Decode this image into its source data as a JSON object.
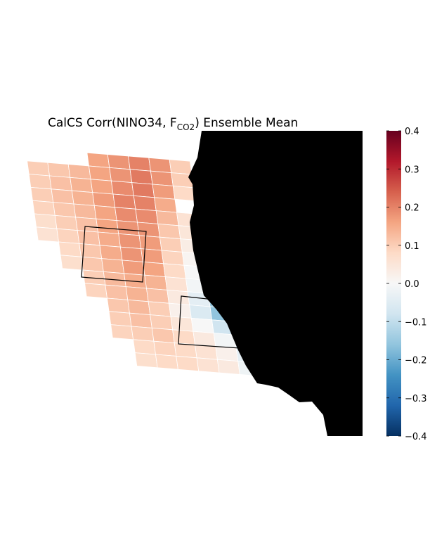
{
  "figure": {
    "title_prefix": "CalCS Corr(NINO34, F",
    "title_subscript": "CO2",
    "title_suffix": ") Ensemble Mean"
  },
  "colorbar": {
    "colormap": "RdBu_r",
    "range": [
      -0.4,
      0.4
    ],
    "ticks": [
      "0.4",
      "0.3",
      "0.2",
      "0.1",
      "0.0",
      "−0.1",
      "−0.2",
      "−0.3",
      "−0.4"
    ],
    "colors_high_to_low": [
      "#67001f",
      "#b2182b",
      "#d6604d",
      "#f4a582",
      "#fddbc7",
      "#f7f7f7",
      "#d1e5f0",
      "#92c5de",
      "#4393c3",
      "#2166ac",
      "#053061"
    ]
  },
  "chart_data": {
    "type": "heatmap",
    "title": "CalCS Corr(NINO34, F_CO2) Ensemble Mean",
    "value_range": [
      -0.4,
      0.4
    ],
    "land_color": "#000000",
    "boxed_regions": 2,
    "correlation_rows": [
      [
        null,
        null,
        null,
        0.16,
        0.18,
        0.2,
        0.18,
        0.1,
        null,
        null,
        null
      ],
      [
        0.1,
        0.11,
        0.13,
        0.16,
        0.18,
        0.21,
        0.18,
        0.1,
        null,
        null,
        null
      ],
      [
        0.1,
        0.12,
        0.14,
        0.16,
        0.19,
        0.21,
        0.17,
        0.08,
        null,
        null,
        null
      ],
      [
        0.1,
        0.12,
        0.14,
        0.17,
        0.2,
        0.2,
        0.15,
        null,
        null,
        null,
        null
      ],
      [
        0.09,
        0.11,
        0.13,
        0.16,
        0.19,
        0.19,
        0.13,
        0.06,
        null,
        null,
        null
      ],
      [
        0.07,
        0.1,
        0.12,
        0.16,
        0.18,
        0.18,
        0.11,
        0.05,
        null,
        null,
        null
      ],
      [
        0.06,
        0.09,
        0.12,
        0.15,
        0.18,
        0.17,
        0.1,
        0.03,
        null,
        null,
        null
      ],
      [
        null,
        0.08,
        0.11,
        0.15,
        0.18,
        0.17,
        0.09,
        0.01,
        -0.04,
        null,
        null
      ],
      [
        null,
        0.07,
        0.11,
        0.14,
        0.17,
        0.16,
        0.08,
        0.0,
        -0.06,
        null,
        null
      ],
      [
        null,
        null,
        0.1,
        0.13,
        0.15,
        0.14,
        0.06,
        -0.01,
        -0.08,
        -0.15,
        null
      ],
      [
        null,
        null,
        0.09,
        0.12,
        0.14,
        0.12,
        0.04,
        -0.04,
        -0.15,
        -0.22,
        null
      ],
      [
        null,
        null,
        null,
        0.11,
        0.13,
        0.1,
        0.02,
        -0.06,
        -0.16,
        -0.24,
        -0.2
      ],
      [
        null,
        null,
        null,
        0.1,
        0.12,
        0.1,
        0.05,
        0.0,
        -0.08,
        -0.16,
        -0.18
      ],
      [
        null,
        null,
        null,
        0.09,
        0.1,
        0.11,
        0.08,
        0.04,
        -0.01,
        -0.1,
        -0.13
      ],
      [
        null,
        null,
        null,
        null,
        0.08,
        0.09,
        0.08,
        0.06,
        0.02,
        -0.04,
        -0.08
      ],
      [
        null,
        null,
        null,
        null,
        0.07,
        0.08,
        0.08,
        0.06,
        0.04,
        -0.02,
        -0.04
      ]
    ]
  }
}
